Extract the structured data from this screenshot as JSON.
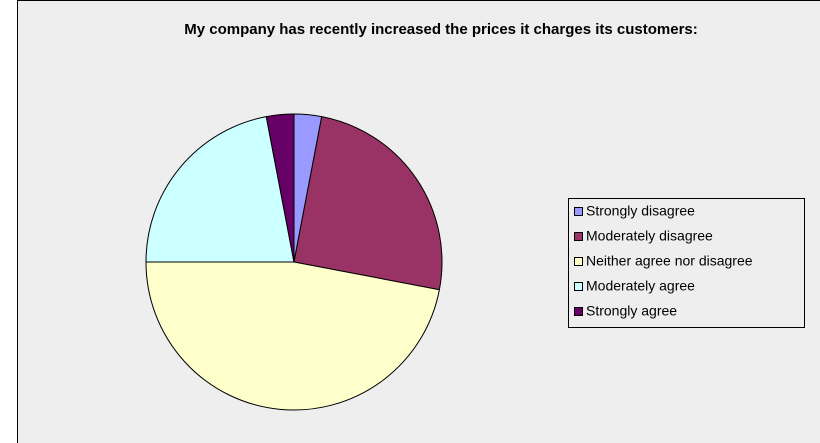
{
  "chart_data": {
    "type": "pie",
    "title": "My company has recently increased the prices it charges its customers:",
    "categories": [
      "Strongly disagree",
      "Moderately disagree",
      "Neither agree nor disagree",
      "Moderately agree",
      "Strongly agree"
    ],
    "values": [
      3,
      25,
      47,
      22,
      3
    ],
    "colors": [
      "#9999ff",
      "#993366",
      "#ffffcc",
      "#ccffff",
      "#660066"
    ],
    "legend": "right"
  }
}
